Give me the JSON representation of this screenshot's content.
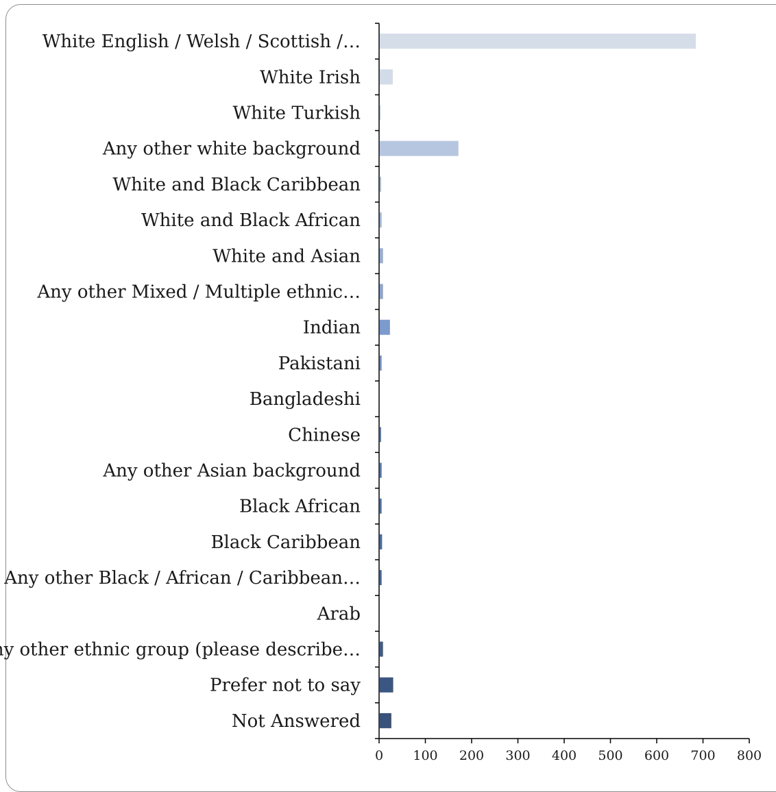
{
  "chart_data": {
    "type": "bar",
    "orientation": "horizontal",
    "title": "",
    "xlabel": "",
    "ylabel": "",
    "xlim": [
      0,
      800
    ],
    "x_ticks": [
      0,
      100,
      200,
      300,
      400,
      500,
      600,
      700,
      800
    ],
    "x_tick_labels": [
      "0",
      "100",
      "200",
      "300",
      "400",
      "500",
      "600",
      "700",
      "800"
    ],
    "grid": false,
    "legend": "none",
    "categories": [
      "White English / Welsh / Scottish /…",
      "White Irish",
      "White Turkish",
      "Any other white background",
      "White and Black Caribbean",
      "White and Black African",
      "White and Asian",
      "Any other Mixed / Multiple ethnic…",
      "Indian",
      "Pakistani",
      "Bangladeshi",
      "Chinese",
      "Any other Asian background",
      "Black African",
      "Black Caribbean",
      "Any other Black / African / Caribbean…",
      "Arab",
      "Any other ethnic group (please describe…",
      "Prefer not to say",
      "Not Answered"
    ],
    "values": [
      683,
      28,
      2,
      170,
      3,
      4,
      7,
      7,
      22,
      4,
      0,
      3,
      4,
      4,
      5,
      4,
      0,
      7,
      29,
      25
    ],
    "bar_colors": [
      "#d5dde9",
      "#d2dbe8",
      "#c8d3e5",
      "#b7c6e0",
      "#a9bcdc",
      "#9fb5d9",
      "#96aed6",
      "#8ca6d3",
      "#7b9acd",
      "#6f91c7",
      "#6589c2",
      "#5a80bc",
      "#5278b4",
      "#4d72ab",
      "#496ca2",
      "#45679a",
      "#426291",
      "#3f5d89",
      "#3b5682",
      "#38527b"
    ]
  }
}
